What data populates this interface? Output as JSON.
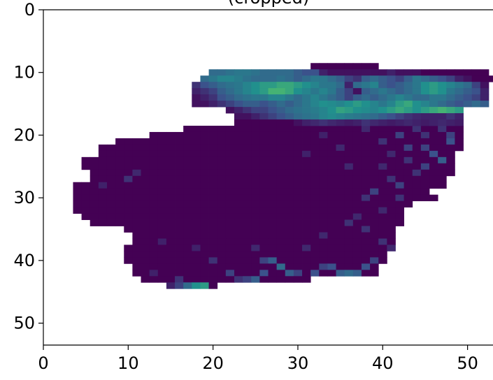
{
  "chart_data": {
    "type": "heatmap",
    "title": "(cropped)",
    "xlabel": "",
    "ylabel": "",
    "xlim": [
      0,
      53
    ],
    "ylim": [
      53.5,
      0
    ],
    "x_ticks": [
      0,
      10,
      20,
      30,
      40,
      50
    ],
    "y_ticks": [
      0,
      10,
      20,
      30,
      40,
      50
    ],
    "x_tick_labels": [
      "0",
      "10",
      "20",
      "30",
      "40",
      "50"
    ],
    "y_tick_labels": [
      "0",
      "10",
      "20",
      "30",
      "40",
      "50"
    ],
    "grid": false,
    "colormap": "viridis",
    "colormap_stops": [
      "#440154",
      "#3b528b",
      "#21908d",
      "#5dc963",
      "#fde725"
    ],
    "background": "#ffffff",
    "rows": [
      {
        "y": 9,
        "start": 32,
        "values": [
          0,
          0,
          0,
          0,
          0,
          0,
          0,
          0
        ]
      },
      {
        "y": 10,
        "start": 20,
        "values": [
          0.35,
          0.35,
          0.38,
          0.4,
          0.4,
          0.38,
          0.35,
          0.35,
          0.35,
          0.35,
          0.3,
          0.25,
          0.25,
          0.1,
          0.05,
          0.05,
          0.05,
          0.05,
          0.05,
          0.05,
          0.05,
          0.1,
          0.05,
          0.05,
          0.05,
          0.0,
          0.0,
          0.0,
          0.0,
          0.0,
          0.0,
          0.0,
          0.0
        ]
      },
      {
        "y": 11,
        "start": 19,
        "values": [
          0.35,
          0.4,
          0.45,
          0.45,
          0.42,
          0.38,
          0.35,
          0.35,
          0.35,
          0.38,
          0.35,
          0.3,
          0.35,
          0.4,
          0.4,
          0.35,
          0.3,
          0.2,
          0.15,
          0.3,
          0.35,
          0.3,
          0.25,
          0.2,
          0.3,
          0.4,
          0.35,
          0.3,
          0.25,
          0.2,
          0.1,
          0.05,
          0.0,
          0.0,
          0.0,
          0.0,
          0.0,
          0.0,
          0.0,
          0.0
        ]
      },
      {
        "y": 12,
        "start": 18,
        "values": [
          0.15,
          0.25,
          0.3,
          0.35,
          0.38,
          0.4,
          0.45,
          0.5,
          0.55,
          0.55,
          0.6,
          0.6,
          0.55,
          0.5,
          0.45,
          0.4,
          0.4,
          0.35,
          0.1,
          0.35,
          0.4,
          0.45,
          0.3,
          0.25,
          0.3,
          0.35,
          0.4,
          0.5,
          0.55,
          0.5,
          0.45,
          0.4,
          0.35,
          0.2,
          0.05
        ]
      },
      {
        "y": 13,
        "start": 18,
        "values": [
          0.1,
          0.15,
          0.2,
          0.3,
          0.35,
          0.4,
          0.45,
          0.5,
          0.55,
          0.65,
          0.65,
          0.6,
          0.5,
          0.45,
          0.4,
          0.45,
          0.4,
          0.3,
          0.2,
          0.05,
          0.3,
          0.35,
          0.4,
          0.35,
          0.3,
          0.35,
          0.4,
          0.5,
          0.55,
          0.5,
          0.4,
          0.35,
          0.3,
          0.25,
          0.1
        ]
      },
      {
        "y": 14,
        "start": 18,
        "values": [
          0.05,
          0.1,
          0.15,
          0.25,
          0.3,
          0.35,
          0.38,
          0.4,
          0.4,
          0.45,
          0.45,
          0.4,
          0.35,
          0.4,
          0.45,
          0.4,
          0.35,
          0.3,
          0.2,
          0.3,
          0.35,
          0.3,
          0.35,
          0.4,
          0.45,
          0.4,
          0.35,
          0.35,
          0.4,
          0.4,
          0.35,
          0.3,
          0.25,
          0.2,
          0.1
        ]
      },
      {
        "y": 15,
        "start": 18,
        "values": [
          0.05,
          0.05,
          0.1,
          0.15,
          0.2,
          0.25,
          0.3,
          0.3,
          0.25,
          0.3,
          0.35,
          0.3,
          0.35,
          0.4,
          0.45,
          0.5,
          0.48,
          0.45,
          0.5,
          0.55,
          0.5,
          0.45,
          0.4,
          0.45,
          0.55,
          0.6,
          0.5,
          0.45,
          0.4,
          0.35,
          0.3,
          0.25,
          0.3,
          0.35,
          0.3
        ]
      },
      {
        "y": 16,
        "start": 22,
        "values": [
          0.05,
          0.1,
          0.15,
          0.2,
          0.2,
          0.25,
          0.3,
          0.35,
          0.38,
          0.4,
          0.42,
          0.45,
          0.5,
          0.58,
          0.55,
          0.5,
          0.48,
          0.45,
          0.5,
          0.55,
          0.6,
          0.55,
          0.5,
          0.55,
          0.6,
          0.65,
          0.6,
          0.55
        ]
      },
      {
        "y": 17,
        "start": 23,
        "values": [
          0.05,
          0.05,
          0.1,
          0.15,
          0.2,
          0.25,
          0.3,
          0.35,
          0.38,
          0.4,
          0.45,
          0.48,
          0.45,
          0.42,
          0.4,
          0.38,
          0.35,
          0.3,
          0.25,
          0.2,
          0.15,
          0.12,
          0.1,
          0.1,
          0.1,
          0.15,
          0.1
        ]
      },
      {
        "y": 18,
        "start": 23,
        "values": [
          0,
          0,
          0,
          0,
          0,
          0,
          0,
          0.05,
          0.1,
          0.12,
          0.15,
          0.12,
          0.1,
          0.08,
          0.1,
          0.15,
          0.12,
          0.1,
          0.08,
          0.1,
          0.12,
          0.1,
          0.08,
          0.1,
          0.12,
          0.1,
          0.08
        ]
      }
    ],
    "mask_rows": [
      {
        "y": 19,
        "from": 17,
        "to": 49
      },
      {
        "y": 20,
        "from": 13,
        "to": 49
      },
      {
        "y": 21,
        "from": 9,
        "to": 49
      },
      {
        "y": 22,
        "from": 7,
        "to": 49
      },
      {
        "y": 23,
        "from": 7,
        "to": 48
      },
      {
        "y": 24,
        "from": 5,
        "to": 48
      },
      {
        "y": 25,
        "from": 5,
        "to": 48
      },
      {
        "y": 26,
        "from": 6,
        "to": 48
      },
      {
        "y": 27,
        "from": 6,
        "to": 47
      },
      {
        "y": 28,
        "from": 4,
        "to": 47
      },
      {
        "y": 29,
        "from": 4,
        "to": 45
      },
      {
        "y": 30,
        "from": 4,
        "to": 46
      },
      {
        "y": 31,
        "from": 4,
        "to": 43
      },
      {
        "y": 32,
        "from": 4,
        "to": 42
      },
      {
        "y": 33,
        "from": 5,
        "to": 42
      },
      {
        "y": 34,
        "from": 6,
        "to": 42
      },
      {
        "y": 35,
        "from": 10,
        "to": 41
      },
      {
        "y": 36,
        "from": 11,
        "to": 41
      },
      {
        "y": 37,
        "from": 11,
        "to": 41
      },
      {
        "y": 38,
        "from": 10,
        "to": 40
      },
      {
        "y": 39,
        "from": 10,
        "to": 40
      },
      {
        "y": 40,
        "from": 10,
        "to": 40
      },
      {
        "y": 41,
        "from": 11,
        "to": 39
      },
      {
        "y": 42,
        "from": 11,
        "to": 39
      },
      {
        "y": 43,
        "from": 12,
        "to": 31
      },
      {
        "y": 44,
        "from": 15,
        "to": 20
      }
    ],
    "highlights": [
      {
        "x": 11,
        "y": 26,
        "v": 0.12
      },
      {
        "x": 10,
        "y": 27,
        "v": 0.15
      },
      {
        "x": 7,
        "y": 28,
        "v": 0.1
      },
      {
        "x": 43,
        "y": 22,
        "v": 0.2
      },
      {
        "x": 45,
        "y": 22,
        "v": 0.2
      },
      {
        "x": 46,
        "y": 23,
        "v": 0.25
      },
      {
        "x": 47,
        "y": 24,
        "v": 0.3
      },
      {
        "x": 45,
        "y": 25,
        "v": 0.2
      },
      {
        "x": 44,
        "y": 26,
        "v": 0.15
      },
      {
        "x": 41,
        "y": 27,
        "v": 0.15
      },
      {
        "x": 42,
        "y": 28,
        "v": 0.2
      },
      {
        "x": 39,
        "y": 29,
        "v": 0.2
      },
      {
        "x": 38,
        "y": 30,
        "v": 0.15
      },
      {
        "x": 36,
        "y": 25,
        "v": 0.12
      },
      {
        "x": 40,
        "y": 21,
        "v": 0.15
      },
      {
        "x": 42,
        "y": 20,
        "v": 0.2
      },
      {
        "x": 38,
        "y": 19,
        "v": 0.12
      },
      {
        "x": 45,
        "y": 20,
        "v": 0.15
      },
      {
        "x": 37,
        "y": 33,
        "v": 0.12
      },
      {
        "x": 36,
        "y": 34,
        "v": 0.15
      },
      {
        "x": 38,
        "y": 35,
        "v": 0.15
      },
      {
        "x": 33,
        "y": 36,
        "v": 0.12
      },
      {
        "x": 25,
        "y": 38,
        "v": 0.12
      },
      {
        "x": 18,
        "y": 38,
        "v": 0.1
      },
      {
        "x": 14,
        "y": 37,
        "v": 0.1
      },
      {
        "x": 20,
        "y": 40,
        "v": 0.15
      },
      {
        "x": 26,
        "y": 40,
        "v": 0.2
      },
      {
        "x": 27,
        "y": 40,
        "v": 0.3
      },
      {
        "x": 28,
        "y": 41,
        "v": 0.35
      },
      {
        "x": 29,
        "y": 42,
        "v": 0.3
      },
      {
        "x": 30,
        "y": 42,
        "v": 0.2
      },
      {
        "x": 33,
        "y": 41,
        "v": 0.2
      },
      {
        "x": 34,
        "y": 41,
        "v": 0.25
      },
      {
        "x": 35,
        "y": 42,
        "v": 0.3
      },
      {
        "x": 36,
        "y": 42,
        "v": 0.35
      },
      {
        "x": 37,
        "y": 42,
        "v": 0.3
      },
      {
        "x": 38,
        "y": 41,
        "v": 0.25
      },
      {
        "x": 39,
        "y": 40,
        "v": 0.2
      },
      {
        "x": 32,
        "y": 42,
        "v": 0.25
      },
      {
        "x": 22,
        "y": 42,
        "v": 0.2
      },
      {
        "x": 23,
        "y": 43,
        "v": 0.15
      },
      {
        "x": 24,
        "y": 43,
        "v": 0.2
      },
      {
        "x": 25,
        "y": 43,
        "v": 0.3
      },
      {
        "x": 26,
        "y": 42,
        "v": 0.25
      },
      {
        "x": 17,
        "y": 44,
        "v": 0.35
      },
      {
        "x": 18,
        "y": 44,
        "v": 0.5
      },
      {
        "x": 19,
        "y": 44,
        "v": 0.55
      },
      {
        "x": 16,
        "y": 44,
        "v": 0.2
      },
      {
        "x": 15,
        "y": 44,
        "v": 0.1
      },
      {
        "x": 13,
        "y": 42,
        "v": 0.1
      },
      {
        "x": 16,
        "y": 43,
        "v": 0.15
      },
      {
        "x": 31,
        "y": 38,
        "v": 0.12
      },
      {
        "x": 40,
        "y": 37,
        "v": 0.15
      },
      {
        "x": 41,
        "y": 38,
        "v": 0.12
      },
      {
        "x": 48,
        "y": 21,
        "v": 0.25
      },
      {
        "x": 48,
        "y": 20,
        "v": 0.2
      },
      {
        "x": 47,
        "y": 19,
        "v": 0.15
      },
      {
        "x": 44,
        "y": 19,
        "v": 0.15
      },
      {
        "x": 41,
        "y": 23,
        "v": 0.12
      },
      {
        "x": 43,
        "y": 24,
        "v": 0.15
      },
      {
        "x": 40,
        "y": 25,
        "v": 0.12
      },
      {
        "x": 42,
        "y": 30,
        "v": 0.15
      },
      {
        "x": 40,
        "y": 32,
        "v": 0.12
      },
      {
        "x": 35,
        "y": 22,
        "v": 0.12
      },
      {
        "x": 33,
        "y": 20,
        "v": 0.1
      },
      {
        "x": 31,
        "y": 23,
        "v": 0.1
      }
    ]
  }
}
